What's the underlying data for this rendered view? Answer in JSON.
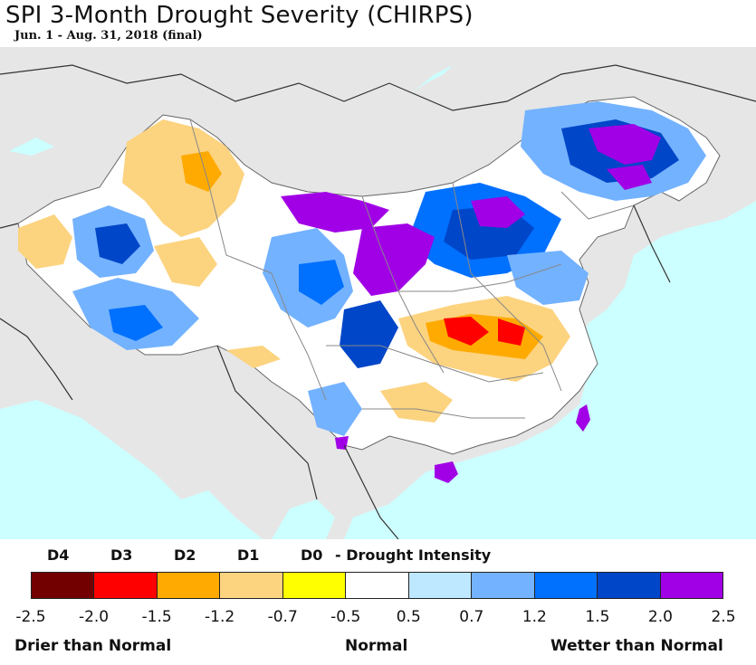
{
  "title": "SPI 3-Month Drought Severity (CHIRPS)",
  "subtitle": "Jun. 1 - Aug. 31, 2018 (final)",
  "legend": {
    "drought_labels": [
      "D4",
      "D3",
      "D2",
      "D1",
      "D0"
    ],
    "intensity_label": "- Drought Intensity",
    "colors": [
      "#730000",
      "#ff0000",
      "#ffaa00",
      "#fcd37f",
      "#ffff00",
      "#ffffff",
      "#bee8ff",
      "#73b2ff",
      "#0070ff",
      "#0046c8",
      "#a100e6"
    ],
    "ticks": [
      "-2.5",
      "-2.0",
      "-1.5",
      "-1.2",
      "-0.7",
      "-0.5",
      "0.5",
      "0.7",
      "1.2",
      "1.5",
      "2.0",
      "2.5"
    ],
    "left_label": "Drier than Normal",
    "center_label": "Normal",
    "right_label": "Wetter than Normal"
  }
}
